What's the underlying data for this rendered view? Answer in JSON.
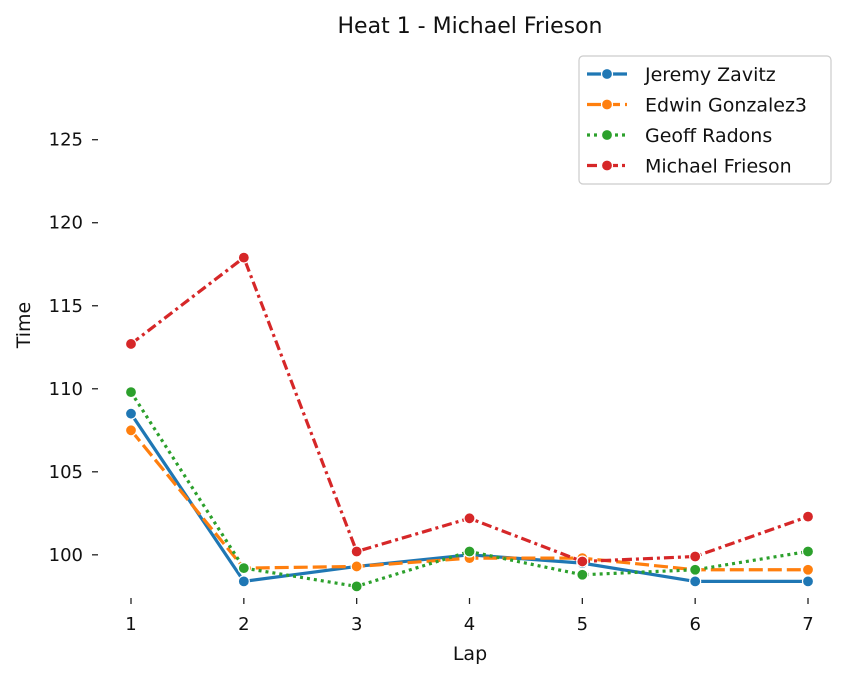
{
  "chart_data": {
    "type": "line",
    "title": "Heat 1 - Michael Frieson",
    "xlabel": "Lap",
    "ylabel": "Time",
    "x": [
      1,
      2,
      3,
      4,
      5,
      6,
      7
    ],
    "xlim": [
      1,
      7
    ],
    "ylim": [
      97.4,
      129.8
    ],
    "yticks": [
      100,
      105,
      110,
      115,
      120,
      125
    ],
    "grid": false,
    "legend_position": "top-right",
    "series": [
      {
        "name": "Jeremy Zavitz",
        "color": "#1f77b4",
        "dash": "solid",
        "values": [
          108.5,
          98.4,
          99.3,
          100.0,
          99.5,
          98.4,
          98.4
        ]
      },
      {
        "name": "Edwin Gonzalez3",
        "color": "#ff7f0e",
        "dash": "dashed",
        "values": [
          107.5,
          99.2,
          99.3,
          99.8,
          99.8,
          99.1,
          99.1
        ]
      },
      {
        "name": "Geoff Radons",
        "color": "#2ca02c",
        "dash": "dotted",
        "values": [
          109.8,
          99.2,
          98.1,
          100.2,
          98.8,
          99.1,
          100.2
        ]
      },
      {
        "name": "Michael Frieson",
        "color": "#d62728",
        "dash": "dashdot",
        "values": [
          112.7,
          117.9,
          100.2,
          102.2,
          99.6,
          99.9,
          102.3
        ]
      }
    ]
  }
}
